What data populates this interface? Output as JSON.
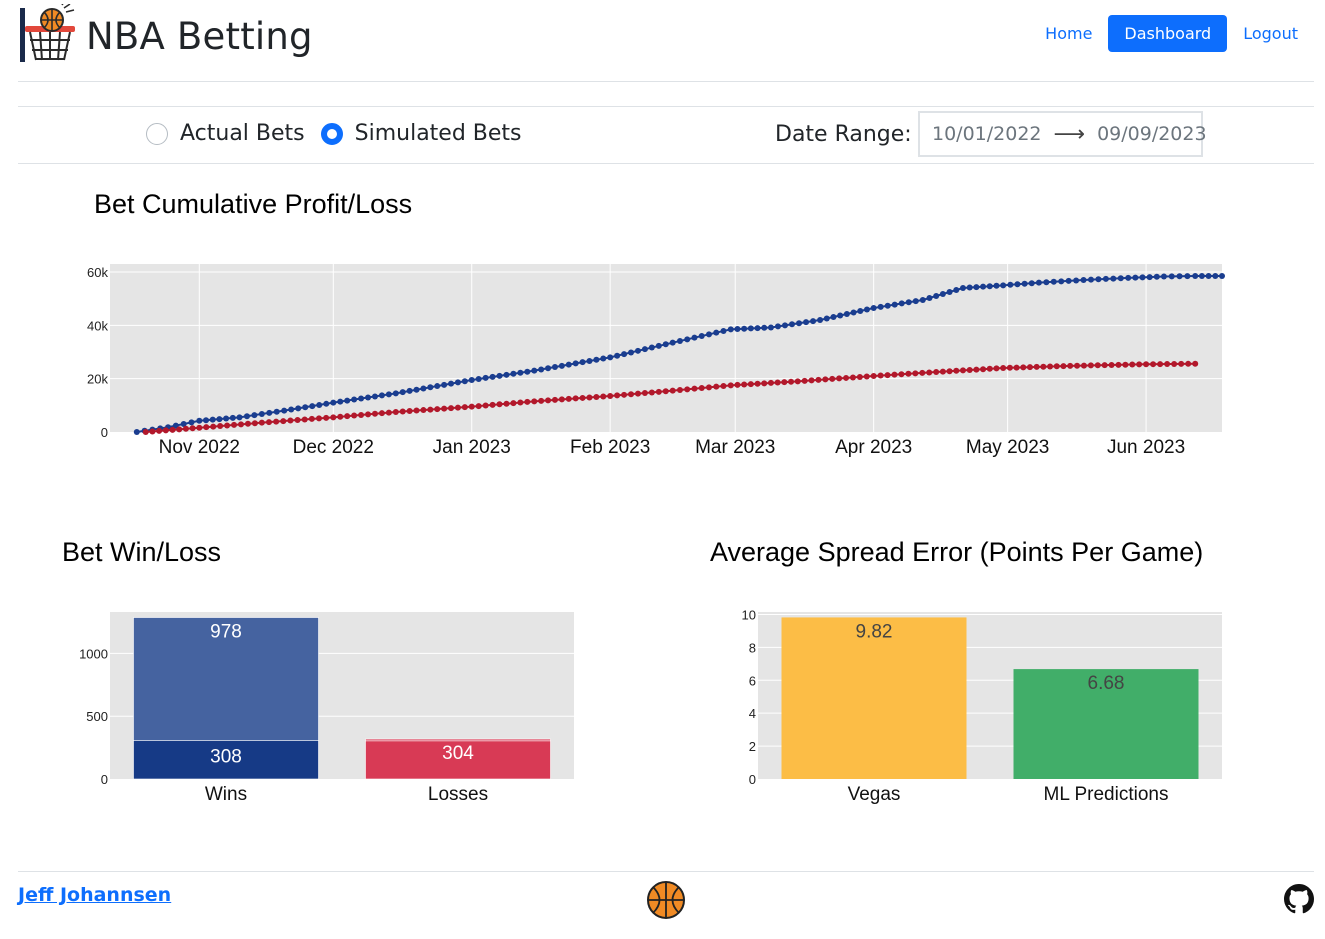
{
  "header": {
    "brand": "NBA Betting",
    "nav": {
      "home": "Home",
      "dashboard": "Dashboard",
      "logout": "Logout"
    }
  },
  "controls": {
    "actual_label": "Actual Bets",
    "simulated_label": "Simulated Bets",
    "selected": "Simulated Bets",
    "date_range_label": "Date Range:",
    "start_date": "10/01/2022",
    "end_date": "09/09/2023"
  },
  "colors": {
    "primary": "#0d6efd",
    "blue_series": "#1a3d8f",
    "red_series": "#b2182b",
    "plot_bg": "#e5e5e5",
    "wins_light": "#4563a0",
    "wins_dark": "#163a86",
    "losses": "#d83a55",
    "vegas": "#fcbd46",
    "ml": "#41ae69"
  },
  "chart_data": [
    {
      "type": "line",
      "title": "Bet Cumulative Profit/Loss",
      "x_ticks": [
        "Nov 2022",
        "Dec 2022",
        "Jan 2023",
        "Feb 2023",
        "Mar 2023",
        "Apr 2023",
        "May 2023",
        "Jun 2023"
      ],
      "y_ticks": [
        "0",
        "20k",
        "40k",
        "60k"
      ],
      "ylim": [
        0,
        63000
      ],
      "xlim": [
        "2022-10-12",
        "2023-06-18"
      ],
      "grid": true,
      "series": [
        {
          "color": "#1a3d8f",
          "points": [
            [
              "2022-10-18",
              0
            ],
            [
              "2022-10-25",
              1800
            ],
            [
              "2022-11-01",
              4200
            ],
            [
              "2022-11-10",
              5500
            ],
            [
              "2022-11-20",
              8000
            ],
            [
              "2022-12-01",
              11000
            ],
            [
              "2022-12-15",
              14500
            ],
            [
              "2023-01-01",
              19500
            ],
            [
              "2023-01-15",
              23000
            ],
            [
              "2023-02-01",
              28000
            ],
            [
              "2023-02-15",
              33500
            ],
            [
              "2023-02-28",
              38500
            ],
            [
              "2023-03-09",
              39200
            ],
            [
              "2023-03-20",
              42000
            ],
            [
              "2023-04-01",
              46500
            ],
            [
              "2023-04-12",
              49500
            ],
            [
              "2023-04-21",
              54000
            ],
            [
              "2023-04-30",
              55000
            ],
            [
              "2023-05-08",
              56000
            ],
            [
              "2023-05-18",
              57000
            ],
            [
              "2023-05-28",
              57800
            ],
            [
              "2023-06-05",
              58300
            ],
            [
              "2023-06-12",
              58500
            ],
            [
              "2023-06-18",
              58500
            ]
          ]
        },
        {
          "color": "#b2182b",
          "points": [
            [
              "2022-10-20",
              0
            ],
            [
              "2022-11-01",
              1600
            ],
            [
              "2022-11-15",
              3500
            ],
            [
              "2022-12-01",
              5500
            ],
            [
              "2022-12-15",
              7500
            ],
            [
              "2023-01-01",
              9500
            ],
            [
              "2023-01-15",
              11500
            ],
            [
              "2023-02-01",
              13500
            ],
            [
              "2023-02-15",
              15500
            ],
            [
              "2023-02-28",
              17500
            ],
            [
              "2023-03-15",
              19000
            ],
            [
              "2023-04-01",
              21000
            ],
            [
              "2023-04-15",
              22500
            ],
            [
              "2023-04-30",
              24000
            ],
            [
              "2023-05-15",
              24800
            ],
            [
              "2023-06-01",
              25400
            ],
            [
              "2023-06-12",
              25600
            ]
          ]
        }
      ]
    },
    {
      "type": "bar",
      "title": "Bet Win/Loss",
      "categories": [
        "Wins",
        "Losses"
      ],
      "stacked": true,
      "series": [
        {
          "values": [
            308,
            304
          ],
          "colors": [
            "#163a86",
            "#d83a55"
          ]
        },
        {
          "values": [
            978,
            14
          ],
          "colors": [
            "#4563a0",
            "#d83a55"
          ]
        }
      ],
      "labels": [
        [
          "308",
          "978"
        ],
        [
          "304"
        ]
      ],
      "y_ticks": [
        "0",
        "500",
        "1000"
      ],
      "ylim": [
        0,
        1330
      ]
    },
    {
      "type": "bar",
      "title": "Average Spread Error (Points Per Game)",
      "categories": [
        "Vegas",
        "ML Predictions"
      ],
      "values": [
        9.82,
        6.68
      ],
      "labels": [
        "9.82",
        "6.68"
      ],
      "colors": [
        "#fcbd46",
        "#41ae69"
      ],
      "y_ticks": [
        "0",
        "2",
        "4",
        "6",
        "8",
        "10"
      ],
      "ylim": [
        0,
        10.15
      ]
    }
  ],
  "footer": {
    "author": "Jeff Johannsen",
    "center_icon": "basketball-icon",
    "right_icon": "github-icon"
  }
}
